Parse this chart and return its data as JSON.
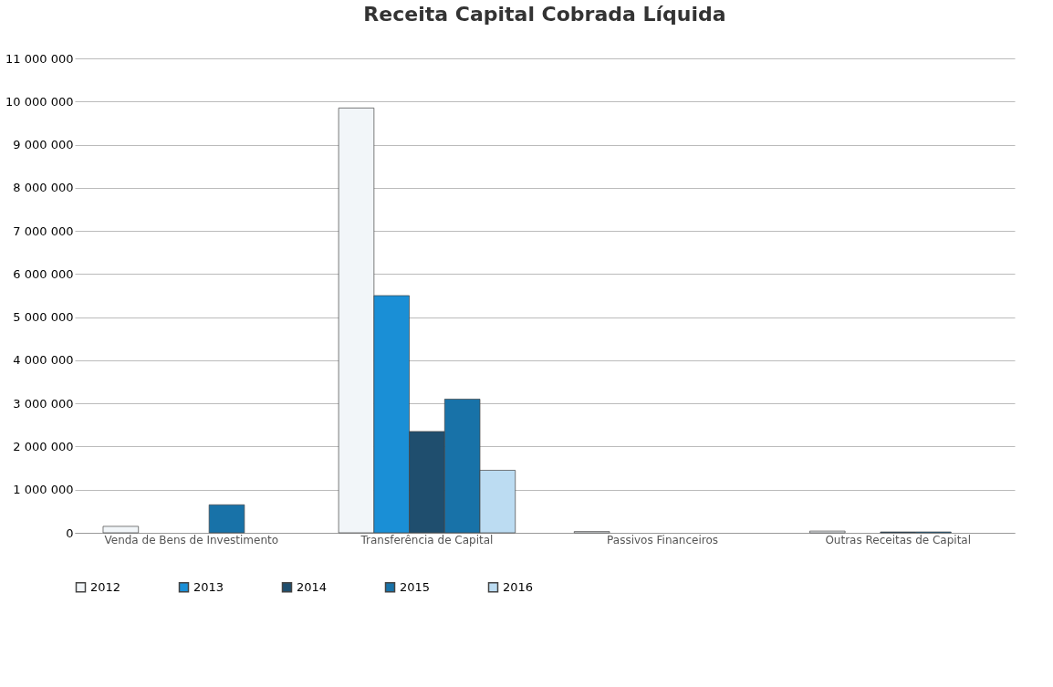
{
  "chart_data": {
    "type": "bar",
    "title": "Receita Capital Cobrada Líquida",
    "categories": [
      "Venda de Bens de Investimento",
      "Transferência de Capital",
      "Passivos Financeiros",
      "Outras Receitas de Capital"
    ],
    "series": [
      {
        "name": "2012",
        "color": "#f2f6f9",
        "values": [
          150000,
          9850000,
          30000,
          40000
        ]
      },
      {
        "name": "2013",
        "color": "#1a8fd6",
        "values": [
          null,
          5500000,
          null,
          null
        ]
      },
      {
        "name": "2014",
        "color": "#1f4e6e",
        "values": [
          null,
          2350000,
          null,
          20000
        ]
      },
      {
        "name": "2015",
        "color": "#1872a8",
        "values": [
          650000,
          3100000,
          null,
          20000
        ]
      },
      {
        "name": "2016",
        "color": "#bcdcf2",
        "values": [
          null,
          1450000,
          null,
          null
        ]
      }
    ],
    "ylim": [
      0,
      11000000
    ],
    "yticks": [
      {
        "value": 0,
        "label": "0"
      },
      {
        "value": 1000000,
        "label": "1 000 000"
      },
      {
        "value": 2000000,
        "label": "2 000 000"
      },
      {
        "value": 3000000,
        "label": "3 000 000"
      },
      {
        "value": 4000000,
        "label": "4 000 000"
      },
      {
        "value": 5000000,
        "label": "5 000 000"
      },
      {
        "value": 6000000,
        "label": "6 000 000"
      },
      {
        "value": 7000000,
        "label": "7 000 000"
      },
      {
        "value": 8000000,
        "label": "8 000 000"
      },
      {
        "value": 9000000,
        "label": "9 000 000"
      },
      {
        "value": 10000000,
        "label": "10 000 000"
      },
      {
        "value": 11000000,
        "label": "11 000 000"
      }
    ],
    "grid": "y",
    "legend": "bottom"
  }
}
